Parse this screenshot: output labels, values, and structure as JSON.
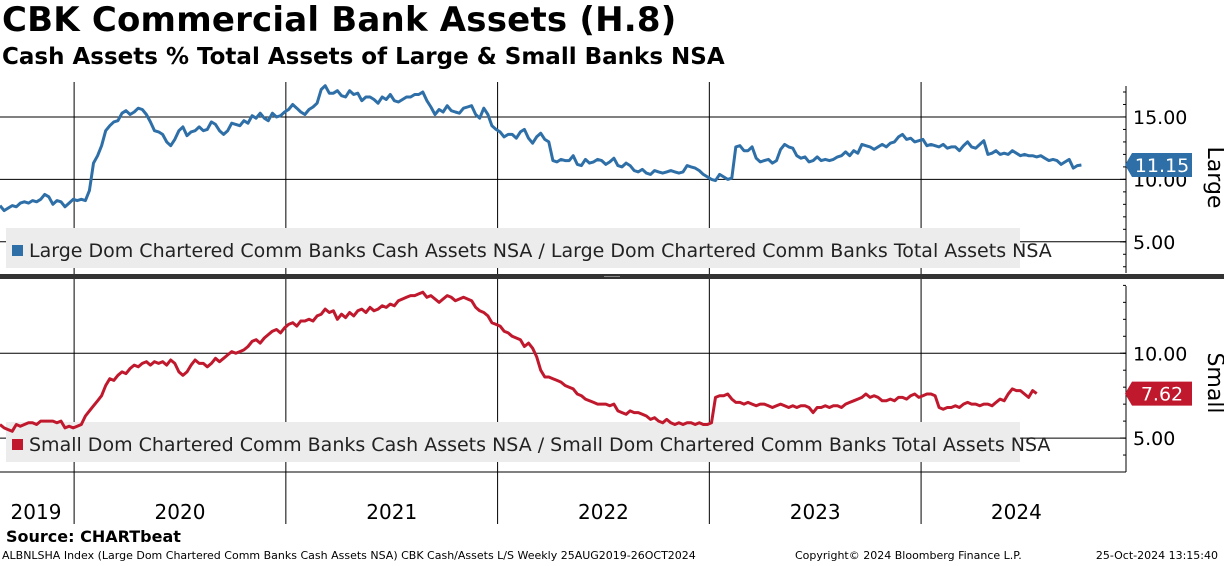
{
  "header": {
    "title": "CBK Commercial Bank Assets (H.8)",
    "subtitle": "Cash Assets % Total Assets of Large & Small Banks NSA"
  },
  "footer": {
    "source": "Source: CHARTbeat",
    "security": "ALBNLSHA Index (Large Dom Chartered Comm Banks Cash Assets NSA) CBK Cash/Assets L/S  Weekly 25AUG2019-26OCT2024",
    "copyright": "Copyright© 2024 Bloomberg Finance L.P.",
    "timestamp": "25-Oct-2024 13:15:40"
  },
  "chart_data": [
    {
      "type": "line",
      "panel": "Large",
      "x_start": 2019.65,
      "x_step": 0.0192,
      "series": [
        {
          "name": "Large Dom Chartered Comm Banks Cash Assets NSA / Large Dom Chartered Comm Banks Total Assets NSA",
          "color": "#2e6fa8",
          "last_value": 11.15,
          "last_label": "11.15",
          "values": [
            7.9,
            7.5,
            7.7,
            7.9,
            7.8,
            8.1,
            8.2,
            8.1,
            8.3,
            8.2,
            8.4,
            8.8,
            8.6,
            8.0,
            8.3,
            8.2,
            7.8,
            8.1,
            8.4,
            8.3,
            8.4,
            8.3,
            9.1,
            11.3,
            11.9,
            12.7,
            13.9,
            14.3,
            14.6,
            14.7,
            15.3,
            15.5,
            15.2,
            15.4,
            15.7,
            15.6,
            15.2,
            14.6,
            13.9,
            13.8,
            13.6,
            13.0,
            12.7,
            13.2,
            13.9,
            14.2,
            13.5,
            13.8,
            13.9,
            14.2,
            13.9,
            14.0,
            14.6,
            14.4,
            13.9,
            13.6,
            13.9,
            14.5,
            14.4,
            14.3,
            14.7,
            14.5,
            15.1,
            14.9,
            15.3,
            14.9,
            14.7,
            15.3,
            15.0,
            15.1,
            15.4,
            15.6,
            16.0,
            15.7,
            15.4,
            15.2,
            15.6,
            15.8,
            16.1,
            17.2,
            17.5,
            16.9,
            16.9,
            17.1,
            16.7,
            16.6,
            17.1,
            16.8,
            16.9,
            16.3,
            16.6,
            16.6,
            16.4,
            16.1,
            16.6,
            16.4,
            16.8,
            16.3,
            16.2,
            16.4,
            16.6,
            16.6,
            16.8,
            16.8,
            17.0,
            16.3,
            15.8,
            15.2,
            15.6,
            15.4,
            15.9,
            15.5,
            15.4,
            15.3,
            15.7,
            15.8,
            15.9,
            15.2,
            14.9,
            15.7,
            15.2,
            14.3,
            14.0,
            13.8,
            13.4,
            13.6,
            13.6,
            13.3,
            13.8,
            14.0,
            13.3,
            12.9,
            13.4,
            13.7,
            13.2,
            13.0,
            11.5,
            11.4,
            11.6,
            11.5,
            11.5,
            11.9,
            11.2,
            11.1,
            11.6,
            11.3,
            11.4,
            11.6,
            11.5,
            11.2,
            11.4,
            11.7,
            11.1,
            11.0,
            11.3,
            11.1,
            10.7,
            10.6,
            10.8,
            10.5,
            10.4,
            10.7,
            10.6,
            10.5,
            10.6,
            10.7,
            10.6,
            10.5,
            10.6,
            11.1,
            11.0,
            10.9,
            10.7,
            10.4,
            10.2,
            10.0,
            9.9,
            10.4,
            10.2,
            10.0,
            10.1,
            12.6,
            12.7,
            12.3,
            12.3,
            12.6,
            11.7,
            11.4,
            11.5,
            11.6,
            11.3,
            11.5,
            12.4,
            12.8,
            12.6,
            12.5,
            11.9,
            11.7,
            11.8,
            11.4,
            11.5,
            11.8,
            11.5,
            11.6,
            11.5,
            11.6,
            11.8,
            11.9,
            12.2,
            11.9,
            12.3,
            12.1,
            12.8,
            12.7,
            12.6,
            12.4,
            12.6,
            12.8,
            12.6,
            12.9,
            13.0,
            13.4,
            13.6,
            13.2,
            13.3,
            13.0,
            13.1,
            13.2,
            12.7,
            12.8,
            12.7,
            12.6,
            12.8,
            12.5,
            12.6,
            12.6,
            12.3,
            12.7,
            13.0,
            12.6,
            12.5,
            12.8,
            13.1,
            12.0,
            12.1,
            12.3,
            12.0,
            12.1,
            12.0,
            12.3,
            12.1,
            11.9,
            12.0,
            11.9,
            11.9,
            11.8,
            11.9,
            11.7,
            11.5,
            11.6,
            11.5,
            11.2,
            11.4,
            11.6,
            10.9,
            11.1,
            11.15
          ]
        }
      ],
      "ylim": [
        2.5,
        17.8
      ],
      "ticks": [
        {
          "value": 5,
          "label": "5.00"
        },
        {
          "value": 10,
          "label": "10.00"
        },
        {
          "value": 15,
          "label": "15.00"
        }
      ],
      "legend": "bottom-left",
      "axis_label": "Large"
    },
    {
      "type": "line",
      "panel": "Small",
      "x_start": 2019.65,
      "x_step": 0.0192,
      "series": [
        {
          "name": "Small Dom Chartered Comm Banks Cash Assets NSA / Small Dom Chartered Comm Banks Total Assets NSA",
          "color": "#c0182c",
          "last_value": 7.62,
          "last_label": "7.62",
          "values": [
            5.8,
            5.6,
            5.5,
            5.4,
            5.8,
            5.7,
            5.8,
            5.9,
            5.9,
            5.8,
            6.0,
            6.0,
            6.0,
            6.0,
            5.9,
            6.0,
            5.6,
            5.7,
            5.6,
            5.7,
            5.8,
            6.3,
            6.6,
            6.9,
            7.2,
            7.5,
            8.1,
            8.5,
            8.4,
            8.7,
            8.9,
            8.8,
            9.1,
            9.3,
            9.2,
            9.4,
            9.5,
            9.3,
            9.5,
            9.4,
            9.5,
            9.3,
            9.6,
            9.4,
            8.9,
            8.7,
            8.9,
            9.3,
            9.6,
            9.4,
            9.4,
            9.2,
            9.4,
            9.7,
            9.5,
            9.7,
            9.9,
            10.1,
            10.0,
            10.1,
            10.2,
            10.4,
            10.7,
            10.8,
            10.6,
            10.9,
            11.1,
            11.3,
            11.4,
            11.2,
            11.5,
            11.7,
            11.8,
            11.6,
            11.9,
            11.9,
            12.0,
            11.9,
            12.2,
            12.3,
            12.6,
            12.4,
            12.5,
            12.0,
            12.3,
            12.1,
            12.4,
            12.2,
            12.5,
            12.6,
            12.4,
            12.7,
            12.5,
            12.6,
            12.8,
            12.7,
            12.9,
            12.8,
            13.1,
            13.2,
            13.3,
            13.4,
            13.4,
            13.5,
            13.6,
            13.3,
            13.4,
            13.2,
            13.0,
            13.2,
            13.4,
            13.3,
            13.1,
            13.2,
            13.3,
            13.2,
            13.1,
            12.7,
            12.5,
            12.4,
            12.2,
            11.8,
            11.7,
            11.6,
            11.3,
            11.2,
            11.0,
            10.9,
            10.8,
            10.4,
            10.6,
            10.3,
            9.8,
            9.0,
            8.6,
            8.6,
            8.5,
            8.4,
            8.3,
            8.1,
            8.0,
            7.9,
            7.6,
            7.5,
            7.3,
            7.2,
            7.1,
            7.0,
            7.0,
            7.0,
            6.9,
            7.0,
            6.6,
            6.5,
            6.4,
            6.6,
            6.5,
            6.5,
            6.4,
            6.3,
            6.1,
            6.2,
            6.0,
            5.9,
            6.1,
            5.9,
            5.8,
            5.9,
            5.8,
            5.9,
            5.9,
            5.8,
            5.9,
            5.8,
            5.8,
            5.9,
            7.4,
            7.5,
            7.5,
            7.6,
            7.3,
            7.1,
            7.1,
            7.0,
            7.1,
            7.0,
            6.9,
            7.0,
            7.0,
            6.9,
            6.8,
            6.9,
            7.0,
            6.9,
            6.8,
            6.9,
            6.8,
            6.9,
            6.9,
            6.8,
            6.5,
            6.8,
            6.8,
            6.9,
            6.8,
            6.9,
            6.9,
            6.8,
            7.0,
            7.1,
            7.2,
            7.3,
            7.4,
            7.6,
            7.4,
            7.5,
            7.4,
            7.2,
            7.2,
            7.3,
            7.2,
            7.4,
            7.4,
            7.3,
            7.5,
            7.6,
            7.4,
            7.5,
            7.6,
            7.6,
            7.5,
            6.8,
            6.7,
            6.8,
            6.8,
            6.9,
            6.8,
            7.0,
            7.1,
            7.0,
            7.0,
            6.9,
            7.0,
            7.0,
            6.9,
            7.1,
            7.3,
            7.2,
            7.6,
            7.9,
            7.8,
            7.8,
            7.6,
            7.4,
            7.8,
            7.62
          ]
        }
      ],
      "ylim": [
        3.0,
        14.2
      ],
      "ticks": [
        {
          "value": 5,
          "label": "5.00"
        },
        {
          "value": 10,
          "label": "10.00"
        }
      ],
      "legend": "bottom-left",
      "axis_label": "Small"
    }
  ],
  "x_axis": {
    "years": [
      {
        "label": "2019",
        "center": 2019.82
      },
      {
        "label": "2020",
        "center": 2020.5
      },
      {
        "label": "2021",
        "center": 2021.5
      },
      {
        "label": "2022",
        "center": 2022.5
      },
      {
        "label": "2023",
        "center": 2023.5
      },
      {
        "label": "2024",
        "center": 2024.45
      }
    ],
    "boundaries": [
      2020.0,
      2021.0,
      2022.0,
      2023.0,
      2024.0
    ]
  }
}
